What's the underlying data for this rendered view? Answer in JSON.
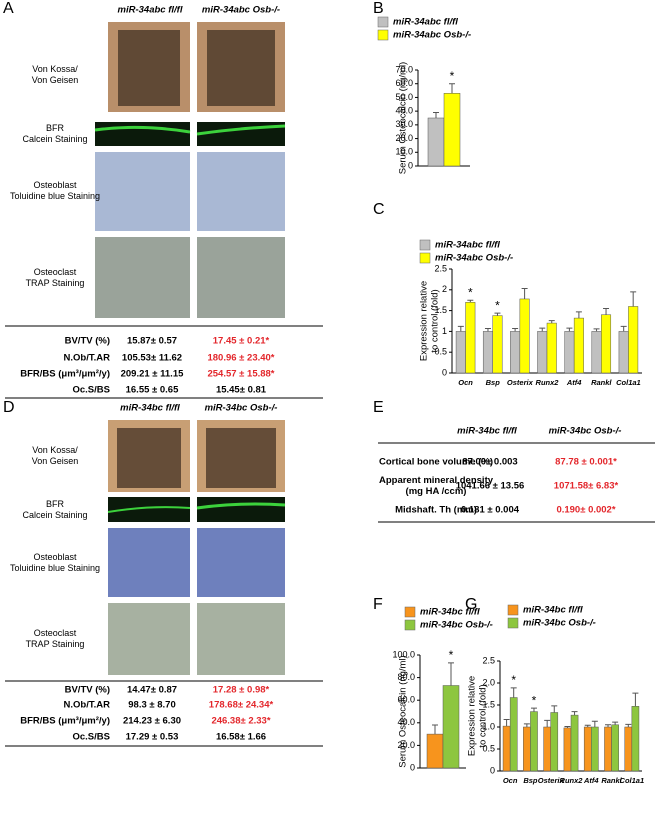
{
  "panel_labels": [
    "A",
    "B",
    "C",
    "D",
    "E",
    "F",
    "G"
  ],
  "histology": [
    {
      "columns": [
        "miR-34abc fl/fl",
        "miR-34abc Osb-/-"
      ],
      "stains": [
        [
          "Von Kossa/",
          "Von Geisen"
        ],
        [
          "BFR",
          "Calcein Staining"
        ],
        [
          "Osteoblast",
          "Toluidine blue Staining"
        ],
        [
          "Osteoclast",
          "TRAP Staining"
        ]
      ],
      "table": [
        {
          "label": "BV/TV (%)",
          "control": "15.87± 0.57",
          "mutant": "17.45 ± 0.21*",
          "mutant_color": "#e3262b"
        },
        {
          "label": "N.Ob/T.AR",
          "control": "105.53± 11.62",
          "mutant": "180.96 ± 23.40*",
          "mutant_color": "#e3262b"
        },
        {
          "label": "BFR/BS (μm³/μm²/y)",
          "control": "209.21 ± 11.15",
          "mutant": "254.57 ± 15.88*",
          "mutant_color": "#e3262b"
        },
        {
          "label": "Oc.S/BS",
          "control": "16.55 ± 0.65",
          "mutant": "15.45± 0.81",
          "mutant_color": "#000000"
        }
      ]
    },
    {
      "columns": [
        "miR-34bc fl/fl",
        "miR-34bc Osb-/-"
      ],
      "stains": [
        [
          "Von Kossa/",
          "Von Geisen"
        ],
        [
          "BFR",
          "Calcein Staining"
        ],
        [
          "Osteoblast",
          "Toluidine blue Staining"
        ],
        [
          "Osteoclast",
          "TRAP Staining"
        ]
      ],
      "table": [
        {
          "label": "BV/TV (%)",
          "control": "14.47± 0.87",
          "mutant": "17.28 ± 0.98*",
          "mutant_color": "#e3262b"
        },
        {
          "label": "N.Ob/T.AR",
          "control": "98.3 ± 8.70",
          "mutant": "178.68± 24.34*",
          "mutant_color": "#e3262b"
        },
        {
          "label": "BFR/BS (μm³/μm²/y)",
          "control": "214.23 ± 6.30",
          "mutant": "246.38± 2.33*",
          "mutant_color": "#e3262b"
        },
        {
          "label": "Oc.S/BS",
          "control": "17.29 ± 0.53",
          "mutant": "16.58± 1.66",
          "mutant_color": "#000000"
        }
      ]
    }
  ],
  "cortical_table": {
    "columns": [
      "miR-34bc fl/fl",
      "miR-34bc Osb-/-"
    ],
    "rows": [
      {
        "label": [
          "Cortical bone volume (%)"
        ],
        "control": "87.00± 0.003",
        "mutant": "87.78 ± 0.001*",
        "mutant_color": "#e3262b"
      },
      {
        "label": [
          "Apparent mineral density",
          "(mg HA /ccm)"
        ],
        "control": "1041.66 ± 13.56",
        "mutant": "1071.58± 6.83*",
        "mutant_color": "#e3262b"
      },
      {
        "label": [
          "Midshaft. Th (mm)"
        ],
        "control": "0.181 ± 0.004",
        "mutant": "0.190± 0.002*",
        "mutant_color": "#e3262b"
      }
    ]
  },
  "chart_data": [
    {
      "type": "bar",
      "ylabel": [
        "Serum Osteocalcin (ng/ml)"
      ],
      "categories": [
        null
      ],
      "series": [
        {
          "name": "miR-34abc fl/fl",
          "color": "#c0c0c0",
          "values": [
            35
          ],
          "errors": [
            4
          ]
        },
        {
          "name": "miR-34abc Osb-/-",
          "color": "#ffff00",
          "values": [
            53
          ],
          "errors": [
            7
          ]
        }
      ],
      "ylim": [
        0,
        70
      ],
      "yticks": [
        0,
        {
          "value": 10,
          "label": "10.0"
        },
        {
          "value": 20,
          "label": "20.0"
        },
        {
          "value": 30,
          "label": "30.0"
        },
        {
          "value": 40,
          "label": "40.0"
        },
        {
          "value": 50,
          "label": "50.0"
        },
        {
          "value": 60,
          "label": "60.0"
        },
        {
          "value": 70,
          "label": "70.0"
        }
      ],
      "annotations": [
        {
          "text": "*",
          "series": 1,
          "index": 0
        }
      ]
    },
    {
      "type": "bar",
      "ylabel": [
        "Expression relative",
        "to control (fold)"
      ],
      "categories": [
        "Ocn",
        "Bsp",
        "Osterix",
        "Runx2",
        "Atf4",
        "Rankl",
        "Col1a1"
      ],
      "series": [
        {
          "name": "miR-34abc fl/fl",
          "color": "#c0c0c0",
          "values": [
            1.0,
            1.0,
            1.0,
            1.0,
            1.0,
            1.0,
            1.0
          ],
          "errors": [
            0.12,
            0.07,
            0.07,
            0.08,
            0.08,
            0.06,
            0.12
          ]
        },
        {
          "name": "miR-34abc Osb-/-",
          "color": "#ffff00",
          "values": [
            1.7,
            1.38,
            1.78,
            1.2,
            1.32,
            1.4,
            1.6
          ],
          "errors": [
            0.05,
            0.06,
            0.25,
            0.06,
            0.15,
            0.15,
            0.35
          ]
        }
      ],
      "ylim": [
        0,
        2.5
      ],
      "yticks": [
        0,
        0.5,
        1,
        1.5,
        2,
        2.5
      ],
      "annotations": [
        {
          "text": "*",
          "series": 1,
          "index": 0
        },
        {
          "text": "*",
          "series": 1,
          "index": 1
        }
      ]
    },
    {
      "type": "bar",
      "ylabel": [
        "Serum Osteocalcin (ng/ml)"
      ],
      "categories": [
        null
      ],
      "series": [
        {
          "name": "miR-34bc fl/fl",
          "color": "#f7941d",
          "values": [
            30
          ],
          "errors": [
            8
          ]
        },
        {
          "name": "miR-34bc Osb-/-",
          "color": "#8dc63f",
          "values": [
            73
          ],
          "errors": [
            20
          ]
        }
      ],
      "ylim": [
        0,
        100
      ],
      "yticks": [
        0,
        {
          "value": 20,
          "label": "20.0"
        },
        {
          "value": 40,
          "label": "40.0"
        },
        {
          "value": 60,
          "label": "60.0"
        },
        {
          "value": 80,
          "label": "80.0"
        },
        {
          "value": 100,
          "label": "100.0"
        }
      ],
      "annotations": [
        {
          "text": "*",
          "series": 1,
          "index": 0
        }
      ]
    },
    {
      "type": "bar",
      "ylabel": [
        "Expression relative",
        "to control (fold)"
      ],
      "categories": [
        "Ocn",
        "Bsp",
        "Osterix",
        "Runx2",
        "Atf4",
        "Rankl",
        "Col1a1"
      ],
      "series": [
        {
          "name": "miR-34bc fl/fl",
          "color": "#f7941d",
          "values": [
            1.02,
            1.0,
            1.0,
            0.98,
            1.0,
            1.0,
            1.0
          ],
          "errors": [
            0.15,
            0.07,
            0.15,
            0.03,
            0.04,
            0.05,
            0.06
          ]
        },
        {
          "name": "miR-34bc Osb-/-",
          "color": "#8dc63f",
          "values": [
            1.67,
            1.35,
            1.33,
            1.27,
            1.0,
            1.05,
            1.47
          ],
          "errors": [
            0.22,
            0.08,
            0.15,
            0.08,
            0.13,
            0.06,
            0.3
          ]
        }
      ],
      "ylim": [
        0,
        2.5
      ],
      "yticks": [
        0,
        0.5,
        {
          "value": 1,
          "label": "1.0"
        },
        1.5,
        {
          "value": 2,
          "label": "2.0"
        },
        2.5
      ],
      "annotations": [
        {
          "text": "*",
          "series": 1,
          "index": 0
        },
        {
          "text": "*",
          "series": 1,
          "index": 1
        }
      ]
    }
  ]
}
